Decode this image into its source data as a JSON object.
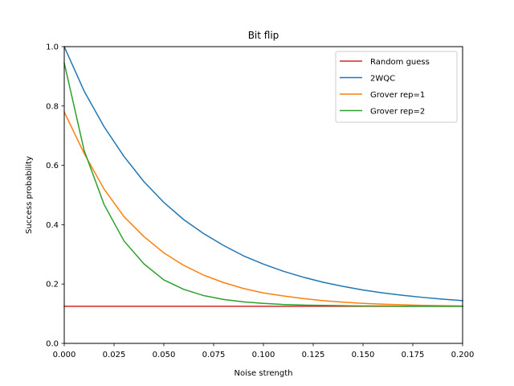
{
  "chart_data": {
    "type": "line",
    "title": "Bit flip",
    "xlabel": "Noise strength",
    "ylabel": "Success probability",
    "xlim": [
      0.0,
      0.2
    ],
    "ylim": [
      0.0,
      1.0
    ],
    "xticks": [
      "0.000",
      "0.025",
      "0.050",
      "0.075",
      "0.100",
      "0.125",
      "0.150",
      "0.175",
      "0.200"
    ],
    "yticks": [
      "0.0",
      "0.2",
      "0.4",
      "0.6",
      "0.8",
      "1.0"
    ],
    "grid": false,
    "legend_position": "top-right",
    "x": [
      0.0,
      0.01,
      0.02,
      0.03,
      0.04,
      0.05,
      0.06,
      0.07,
      0.08,
      0.09,
      0.1,
      0.11,
      0.12,
      0.13,
      0.14,
      0.15,
      0.16,
      0.17,
      0.18,
      0.19,
      0.2
    ],
    "series": [
      {
        "name": "Random guess",
        "color": "#d62728",
        "values": [
          0.125,
          0.125,
          0.125,
          0.125,
          0.125,
          0.125,
          0.125,
          0.125,
          0.125,
          0.125,
          0.125,
          0.125,
          0.125,
          0.125,
          0.125,
          0.125,
          0.125,
          0.125,
          0.125,
          0.125,
          0.125
        ]
      },
      {
        "name": "2WQC",
        "color": "#1f77b4",
        "values": [
          1.0,
          0.85,
          0.73,
          0.63,
          0.545,
          0.475,
          0.417,
          0.37,
          0.33,
          0.295,
          0.267,
          0.243,
          0.223,
          0.206,
          0.192,
          0.18,
          0.17,
          0.162,
          0.155,
          0.149,
          0.144
        ]
      },
      {
        "name": "Grover rep=1",
        "color": "#ff7f0e",
        "values": [
          0.78,
          0.64,
          0.52,
          0.427,
          0.36,
          0.305,
          0.263,
          0.23,
          0.205,
          0.185,
          0.17,
          0.16,
          0.151,
          0.144,
          0.139,
          0.135,
          0.132,
          0.13,
          0.128,
          0.127,
          0.126
        ]
      },
      {
        "name": "Grover rep=2",
        "color": "#2ca02c",
        "values": [
          0.945,
          0.65,
          0.468,
          0.345,
          0.268,
          0.214,
          0.182,
          0.161,
          0.148,
          0.14,
          0.135,
          0.131,
          0.129,
          0.128,
          0.127,
          0.126,
          0.126,
          0.125,
          0.125,
          0.125,
          0.125
        ]
      }
    ]
  }
}
